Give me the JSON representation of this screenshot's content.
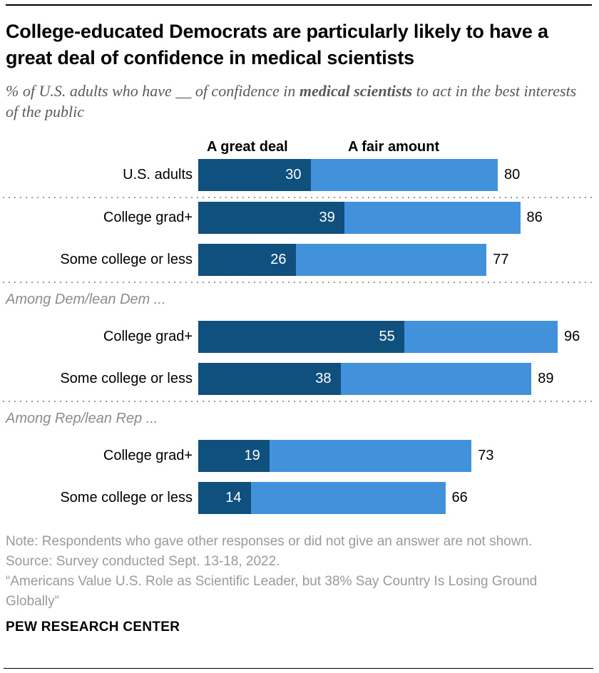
{
  "header": {
    "title": "College-educated Democrats are particularly likely to have a great deal of confidence in medical scientists",
    "subtitle_prefix": "% of U.S. adults who have __ of confidence in ",
    "subtitle_bold": "medical scientists",
    "subtitle_suffix": " to act in the best interests of the public"
  },
  "chart_data": {
    "type": "bar",
    "orientation": "horizontal",
    "stacked": true,
    "axis_max": 100,
    "legend": [
      {
        "label": "A great deal",
        "color": "#10507F"
      },
      {
        "label": "A fair amount",
        "color": "#4191DB"
      }
    ],
    "value_semantics": "a_great_deal is the dark inner segment; net_total is the full bar length (great deal + fair amount NET)",
    "groups": [
      {
        "heading": null,
        "rows": [
          {
            "label": "U.S. adults",
            "a_great_deal": 30,
            "net_total": 80
          }
        ]
      },
      {
        "heading": null,
        "rows": [
          {
            "label": "College grad+",
            "a_great_deal": 39,
            "net_total": 86
          },
          {
            "label": "Some college or less",
            "a_great_deal": 26,
            "net_total": 77
          }
        ]
      },
      {
        "heading": "Among Dem/lean Dem ...",
        "rows": [
          {
            "label": "College grad+",
            "a_great_deal": 55,
            "net_total": 96
          },
          {
            "label": "Some college or less",
            "a_great_deal": 38,
            "net_total": 89
          }
        ]
      },
      {
        "heading": "Among Rep/lean Rep ...",
        "rows": [
          {
            "label": "College grad+",
            "a_great_deal": 19,
            "net_total": 73
          },
          {
            "label": "Some college or less",
            "a_great_deal": 14,
            "net_total": 66
          }
        ]
      }
    ]
  },
  "colors": {
    "a_great_deal": "#10507F",
    "a_fair_amount": "#4191DB",
    "separator": "#9a9a9a"
  },
  "footer": {
    "note": "Note: Respondents who gave other responses or did not give an answer are not shown.",
    "source": "Source: Survey conducted Sept. 13-18, 2022.",
    "quote": "“Americans Value U.S. Role as Scientific Leader, but 38% Say Country Is Losing Ground Globally”",
    "brand": "PEW RESEARCH CENTER"
  }
}
